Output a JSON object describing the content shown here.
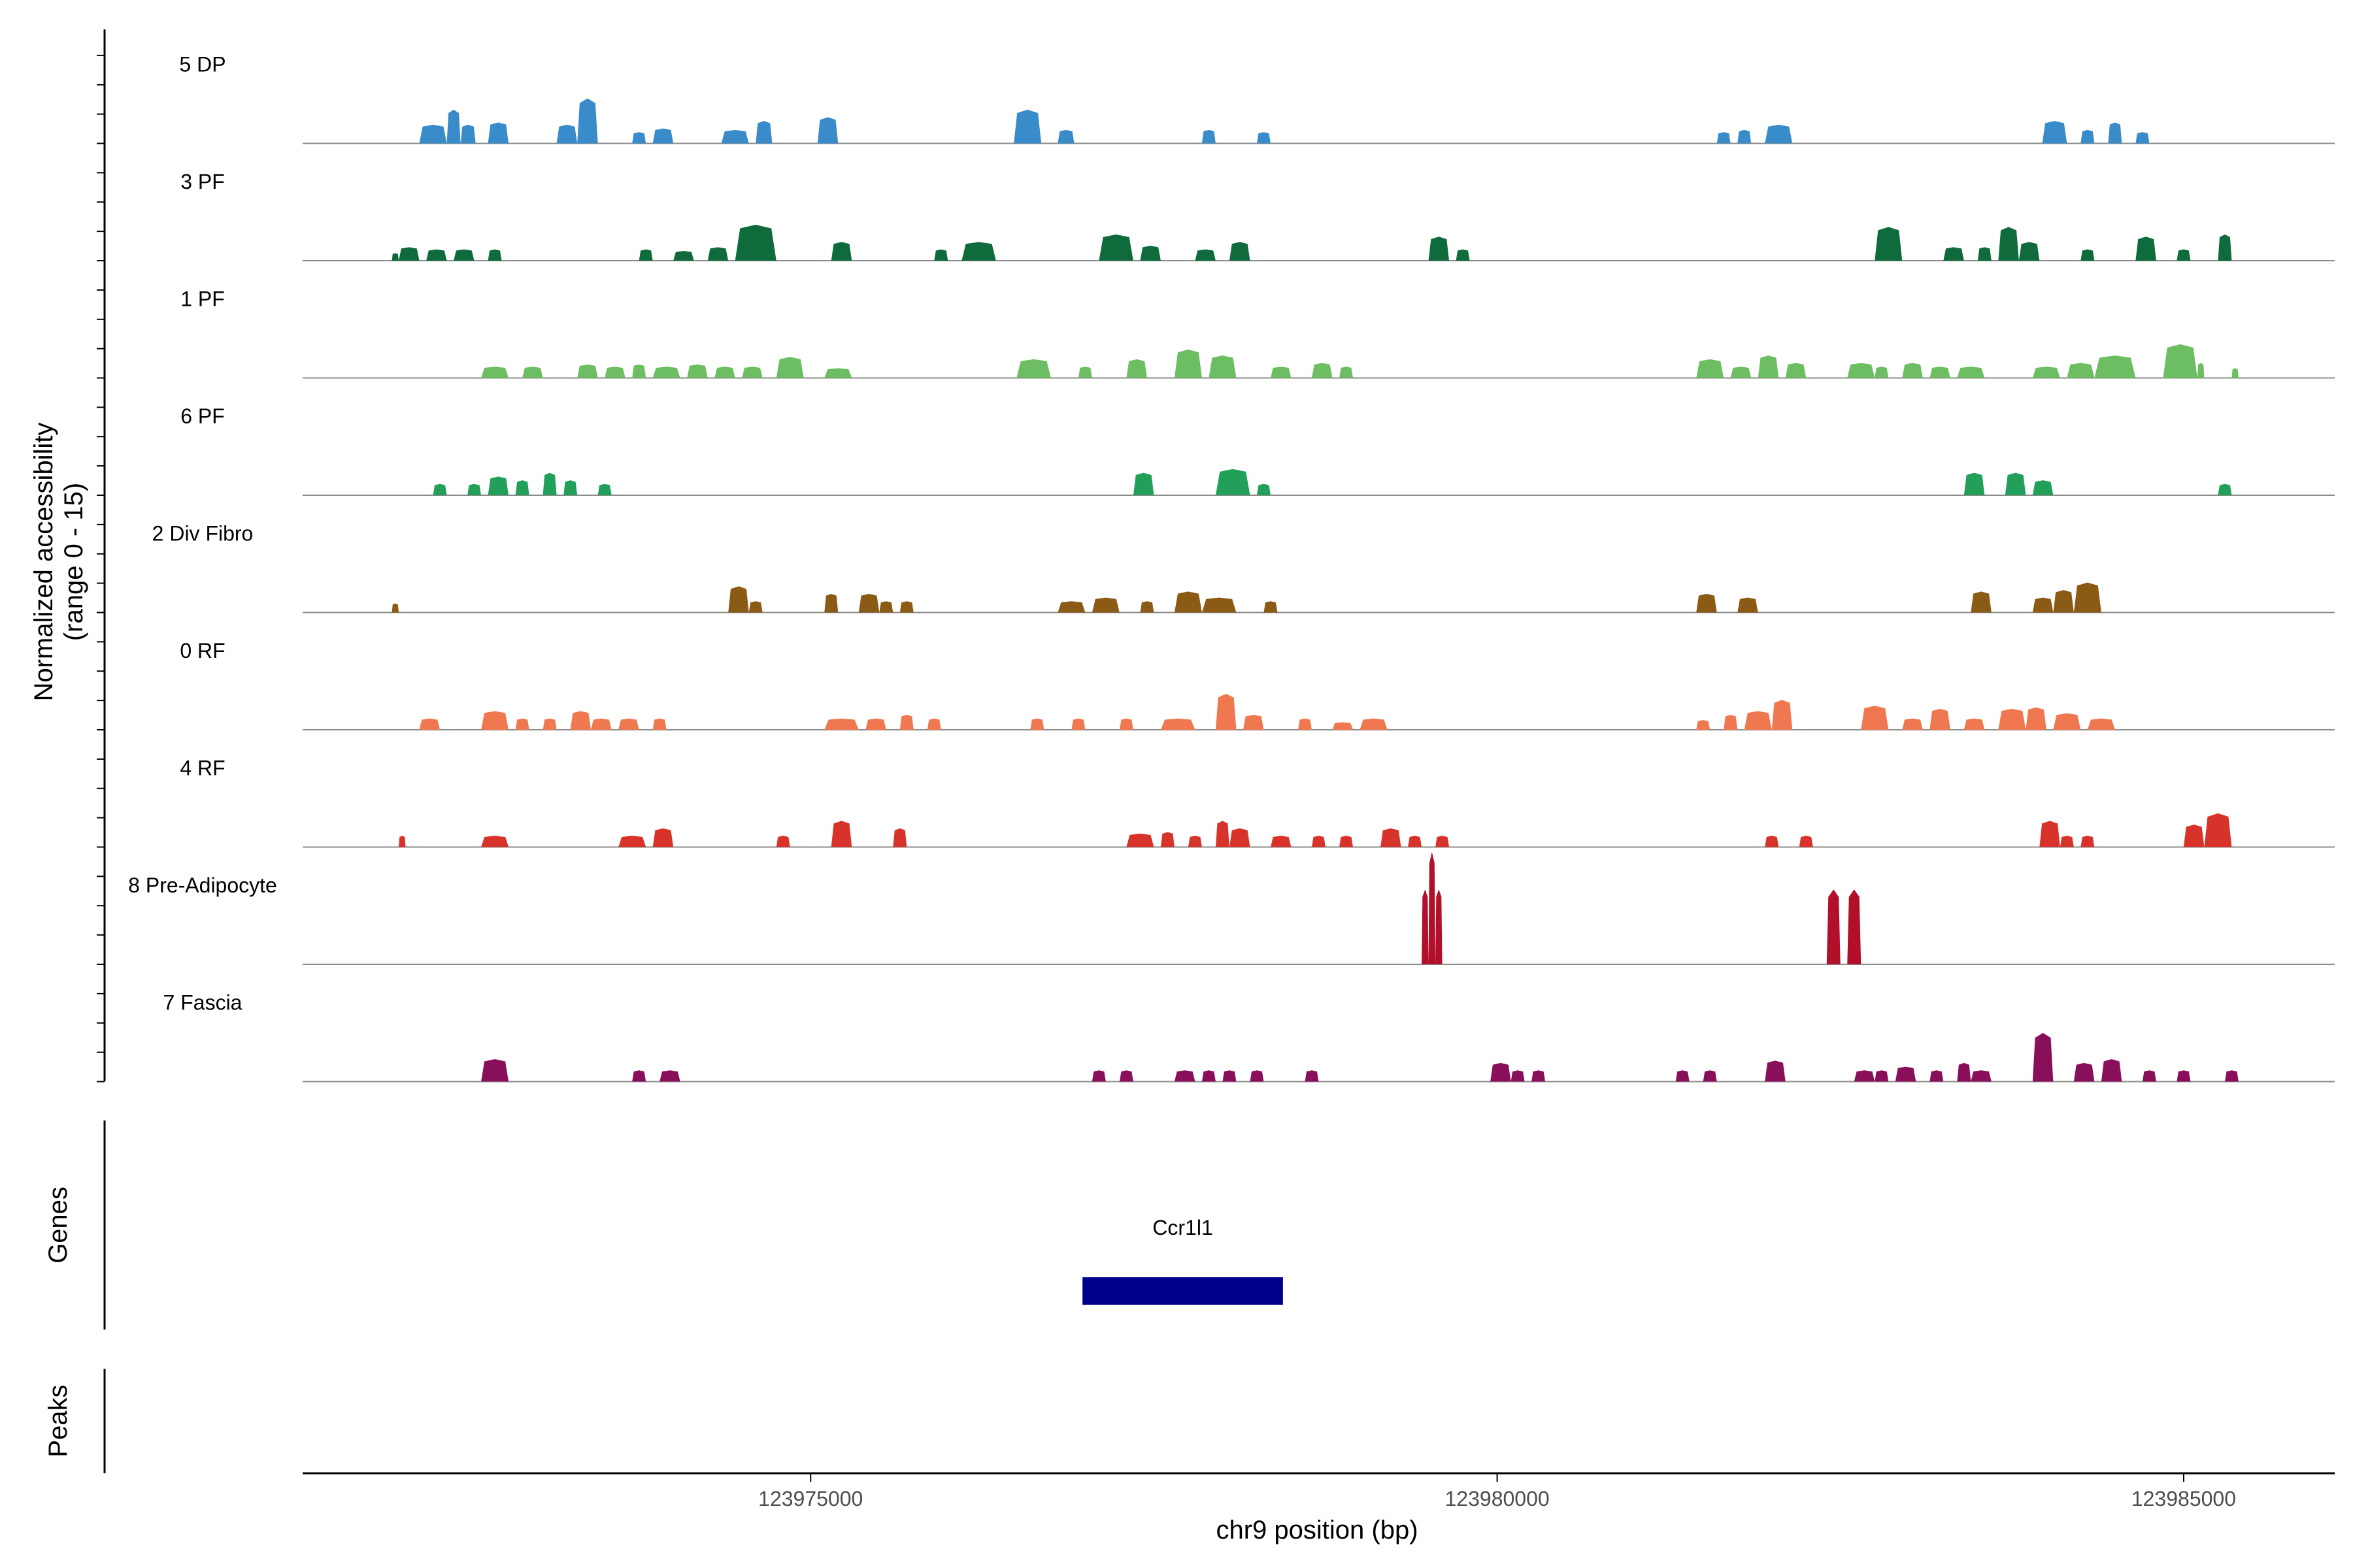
{
  "chart_data": {
    "type": "area",
    "x_axis": {
      "label": "chr9 position (bp)",
      "range": [
        123971300,
        123986100
      ],
      "ticks": [
        123975000,
        123980000,
        123985000
      ],
      "tick_labels": [
        "123975000",
        "123980000",
        "123985000"
      ]
    },
    "y_axis": {
      "label_line1": "Normalized accessibility",
      "label_line2": "(range 0 - 15)",
      "range": [
        0,
        15
      ]
    },
    "panel_labels": {
      "genes": "Genes",
      "peaks": "Peaks"
    },
    "genes": [
      {
        "name": "Ccr1l1",
        "start": 123976980,
        "end": 123978440,
        "color": "#00008b"
      }
    ],
    "tracks": [
      {
        "name": "5 DP",
        "color": "#3a8bc9",
        "peaks": [
          [
            123972150,
            123972350,
            2.5
          ],
          [
            123972350,
            123972450,
            4.5
          ],
          [
            123972450,
            123972560,
            2.5
          ],
          [
            123972650,
            123972800,
            2.8
          ],
          [
            123973150,
            123973300,
            2.5
          ],
          [
            123973300,
            123973450,
            6.0
          ],
          [
            123973700,
            123973800,
            1.5
          ],
          [
            123973850,
            123974000,
            2.0
          ],
          [
            123974350,
            123974550,
            1.8
          ],
          [
            123974600,
            123974720,
            3.0
          ],
          [
            123975050,
            123975200,
            3.5
          ],
          [
            123976480,
            123976680,
            4.5
          ],
          [
            123976800,
            123976920,
            1.8
          ],
          [
            123977850,
            123977950,
            1.8
          ],
          [
            123978250,
            123978350,
            1.5
          ],
          [
            123981600,
            123981700,
            1.5
          ],
          [
            123981750,
            123981850,
            1.8
          ],
          [
            123981950,
            123982150,
            2.5
          ],
          [
            123983970,
            123984150,
            3.0
          ],
          [
            123984250,
            123984350,
            1.8
          ],
          [
            123984450,
            123984550,
            2.8
          ],
          [
            123984650,
            123984750,
            1.5
          ]
        ]
      },
      {
        "name": "3 PF",
        "color": "#0f6b3c",
        "peaks": [
          [
            123971950,
            123972000,
            1.0
          ],
          [
            123972000,
            123972150,
            1.8
          ],
          [
            123972200,
            123972350,
            1.5
          ],
          [
            123972400,
            123972550,
            1.5
          ],
          [
            123972650,
            123972750,
            1.5
          ],
          [
            123973750,
            123973850,
            1.5
          ],
          [
            123974000,
            123974150,
            1.3
          ],
          [
            123974250,
            123974400,
            1.8
          ],
          [
            123974450,
            123974750,
            4.8
          ],
          [
            123975150,
            123975300,
            2.5
          ],
          [
            123975900,
            123976000,
            1.5
          ],
          [
            123976100,
            123976350,
            2.5
          ],
          [
            123977100,
            123977350,
            3.5
          ],
          [
            123977400,
            123977550,
            2.0
          ],
          [
            123977800,
            123977950,
            1.5
          ],
          [
            123978050,
            123978200,
            2.5
          ],
          [
            123979500,
            123979650,
            3.2
          ],
          [
            123979700,
            123979800,
            1.5
          ],
          [
            123982750,
            123982950,
            4.5
          ],
          [
            123983250,
            123983400,
            1.8
          ],
          [
            123983500,
            123983600,
            1.8
          ],
          [
            123983650,
            123983800,
            4.5
          ],
          [
            123983800,
            123983950,
            2.5
          ],
          [
            123984250,
            123984350,
            1.5
          ],
          [
            123984650,
            123984800,
            3.2
          ],
          [
            123984950,
            123985050,
            1.5
          ],
          [
            123985250,
            123985350,
            3.5
          ]
        ]
      },
      {
        "name": "1 PF",
        "color": "#6dbe62",
        "peaks": [
          [
            123972600,
            123972800,
            1.5
          ],
          [
            123972900,
            123973050,
            1.5
          ],
          [
            123973300,
            123973450,
            1.8
          ],
          [
            123973500,
            123973650,
            1.5
          ],
          [
            123973700,
            123973800,
            1.8
          ],
          [
            123973850,
            123974050,
            1.5
          ],
          [
            123974100,
            123974250,
            1.8
          ],
          [
            123974300,
            123974450,
            1.5
          ],
          [
            123974500,
            123974650,
            1.5
          ],
          [
            123974750,
            123974950,
            2.8
          ],
          [
            123975100,
            123975300,
            1.3
          ],
          [
            123976500,
            123976750,
            2.5
          ],
          [
            123976950,
            123977050,
            1.5
          ],
          [
            123977300,
            123977450,
            2.5
          ],
          [
            123977650,
            123977850,
            3.8
          ],
          [
            123977900,
            123978100,
            3.0
          ],
          [
            123978350,
            123978500,
            1.5
          ],
          [
            123978650,
            123978800,
            2.0
          ],
          [
            123978850,
            123978950,
            1.5
          ],
          [
            123981450,
            123981650,
            2.5
          ],
          [
            123981700,
            123981850,
            1.5
          ],
          [
            123981900,
            123982050,
            3.0
          ],
          [
            123982100,
            123982250,
            2.0
          ],
          [
            123982550,
            123982750,
            2.0
          ],
          [
            123982750,
            123982850,
            1.5
          ],
          [
            123982950,
            123983100,
            2.0
          ],
          [
            123983150,
            123983300,
            1.5
          ],
          [
            123983350,
            123983550,
            1.5
          ],
          [
            123983900,
            123984100,
            1.5
          ],
          [
            123984150,
            123984350,
            2.0
          ],
          [
            123984350,
            123984650,
            3.0
          ],
          [
            123984850,
            123985100,
            4.5
          ],
          [
            123985100,
            123985150,
            2.0
          ],
          [
            123985350,
            123985400,
            1.3
          ]
        ]
      },
      {
        "name": "6 PF",
        "color": "#22a05a",
        "peaks": [
          [
            123972250,
            123972350,
            1.5
          ],
          [
            123972500,
            123972600,
            1.5
          ],
          [
            123972650,
            123972800,
            2.5
          ],
          [
            123972850,
            123972950,
            2.0
          ],
          [
            123973050,
            123973150,
            3.0
          ],
          [
            123973200,
            123973300,
            2.0
          ],
          [
            123973450,
            123973550,
            1.5
          ],
          [
            123977350,
            123977500,
            3.0
          ],
          [
            123977950,
            123978200,
            3.5
          ],
          [
            123978250,
            123978350,
            1.5
          ],
          [
            123983400,
            123983550,
            3.0
          ],
          [
            123983700,
            123983850,
            3.0
          ],
          [
            123983900,
            123984050,
            2.0
          ],
          [
            123985250,
            123985350,
            1.5
          ]
        ]
      },
      {
        "name": "2 Div Fibro",
        "color": "#8b5a14",
        "peaks": [
          [
            123971950,
            123972000,
            1.2
          ],
          [
            123974400,
            123974550,
            3.5
          ],
          [
            123974550,
            123974650,
            1.5
          ],
          [
            123975100,
            123975200,
            2.5
          ],
          [
            123975350,
            123975500,
            2.5
          ],
          [
            123975500,
            123975600,
            1.5
          ],
          [
            123975650,
            123975750,
            1.5
          ],
          [
            123976800,
            123977000,
            1.5
          ],
          [
            123977050,
            123977250,
            2.0
          ],
          [
            123977400,
            123977500,
            1.5
          ],
          [
            123977650,
            123977850,
            2.8
          ],
          [
            123977850,
            123978100,
            2.0
          ],
          [
            123978300,
            123978400,
            1.5
          ],
          [
            123981450,
            123981600,
            2.5
          ],
          [
            123981750,
            123981900,
            2.0
          ],
          [
            123983450,
            123983600,
            2.8
          ],
          [
            123983900,
            123984050,
            2.0
          ],
          [
            123984050,
            123984200,
            3.0
          ],
          [
            123984200,
            123984400,
            4.0
          ]
        ]
      },
      {
        "name": "0 RF",
        "color": "#f07850",
        "peaks": [
          [
            123972150,
            123972300,
            1.5
          ],
          [
            123972600,
            123972800,
            2.5
          ],
          [
            123972850,
            123972950,
            1.5
          ],
          [
            123973050,
            123973150,
            1.5
          ],
          [
            123973250,
            123973400,
            2.5
          ],
          [
            123973400,
            123973550,
            1.5
          ],
          [
            123973600,
            123973750,
            1.5
          ],
          [
            123973850,
            123973950,
            1.5
          ],
          [
            123975100,
            123975350,
            1.5
          ],
          [
            123975400,
            123975550,
            1.5
          ],
          [
            123975650,
            123975750,
            2.0
          ],
          [
            123975850,
            123975950,
            1.5
          ],
          [
            123976600,
            123976700,
            1.5
          ],
          [
            123976900,
            123977000,
            1.5
          ],
          [
            123977250,
            123977350,
            1.5
          ],
          [
            123977550,
            123977800,
            1.5
          ],
          [
            123977950,
            123978100,
            4.8
          ],
          [
            123978150,
            123978300,
            2.0
          ],
          [
            123978550,
            123978650,
            1.5
          ],
          [
            123978800,
            123978950,
            1.0
          ],
          [
            123979000,
            123979200,
            1.5
          ],
          [
            123981450,
            123981550,
            1.3
          ],
          [
            123981650,
            123981750,
            2.0
          ],
          [
            123981800,
            123982000,
            2.5
          ],
          [
            123982000,
            123982150,
            4.0
          ],
          [
            123982650,
            123982850,
            3.2
          ],
          [
            123982950,
            123983100,
            1.5
          ],
          [
            123983150,
            123983300,
            2.8
          ],
          [
            123983400,
            123983550,
            1.5
          ],
          [
            123983650,
            123983850,
            2.8
          ],
          [
            123983850,
            123984000,
            3.0
          ],
          [
            123984050,
            123984250,
            2.2
          ],
          [
            123984300,
            123984500,
            1.5
          ]
        ]
      },
      {
        "name": "4 RF",
        "color": "#d7332a",
        "peaks": [
          [
            123972000,
            123972050,
            1.5
          ],
          [
            123972600,
            123972800,
            1.5
          ],
          [
            123973600,
            123973800,
            1.5
          ],
          [
            123973850,
            123974000,
            2.5
          ],
          [
            123974750,
            123974850,
            1.5
          ],
          [
            123975150,
            123975300,
            3.5
          ],
          [
            123975600,
            123975700,
            2.5
          ],
          [
            123977300,
            123977500,
            1.8
          ],
          [
            123977550,
            123977650,
            2.0
          ],
          [
            123977750,
            123977850,
            1.5
          ],
          [
            123977950,
            123978050,
            3.5
          ],
          [
            123978050,
            123978200,
            2.5
          ],
          [
            123978350,
            123978500,
            1.5
          ],
          [
            123978650,
            123978750,
            1.5
          ],
          [
            123978850,
            123978950,
            1.5
          ],
          [
            123979150,
            123979300,
            2.5
          ],
          [
            123979350,
            123979450,
            1.5
          ],
          [
            123979550,
            123979650,
            1.5
          ],
          [
            123981950,
            123982050,
            1.5
          ],
          [
            123982200,
            123982300,
            1.5
          ],
          [
            123983950,
            123984100,
            3.5
          ],
          [
            123984100,
            123984200,
            1.5
          ],
          [
            123984250,
            123984350,
            1.5
          ],
          [
            123985000,
            123985150,
            3.0
          ],
          [
            123985150,
            123985350,
            4.5
          ]
        ]
      },
      {
        "name": "8 Pre-Adipocyte",
        "color": "#b2102a",
        "peaks": [
          [
            123979450,
            123979500,
            10.0
          ],
          [
            123979500,
            123979550,
            15.0
          ],
          [
            123979550,
            123979600,
            10.0
          ],
          [
            123982400,
            123982500,
            10.0
          ],
          [
            123982550,
            123982650,
            10.0
          ]
        ]
      },
      {
        "name": "7 Fascia",
        "color": "#8a0f5a",
        "peaks": [
          [
            123972600,
            123972800,
            3.0
          ],
          [
            123973700,
            123973800,
            1.5
          ],
          [
            123973900,
            123974050,
            1.5
          ],
          [
            123977050,
            123977150,
            1.5
          ],
          [
            123977250,
            123977350,
            1.5
          ],
          [
            123977650,
            123977800,
            1.5
          ],
          [
            123977850,
            123977950,
            1.5
          ],
          [
            123978000,
            123978100,
            1.5
          ],
          [
            123978200,
            123978300,
            1.5
          ],
          [
            123978600,
            123978700,
            1.5
          ],
          [
            123979950,
            123980100,
            2.5
          ],
          [
            123980100,
            123980200,
            1.5
          ],
          [
            123980250,
            123980350,
            1.5
          ],
          [
            123981300,
            123981400,
            1.5
          ],
          [
            123981500,
            123981600,
            1.5
          ],
          [
            123981950,
            123982100,
            2.8
          ],
          [
            123982600,
            123982750,
            1.5
          ],
          [
            123982750,
            123982850,
            1.5
          ],
          [
            123982900,
            123983050,
            2.0
          ],
          [
            123983150,
            123983250,
            1.5
          ],
          [
            123983350,
            123983450,
            2.5
          ],
          [
            123983450,
            123983600,
            1.5
          ],
          [
            123983900,
            123984050,
            6.5
          ],
          [
            123984200,
            123984350,
            2.5
          ],
          [
            123984400,
            123984550,
            3.0
          ],
          [
            123984700,
            123984800,
            1.5
          ],
          [
            123984950,
            123985050,
            1.5
          ],
          [
            123985300,
            123985400,
            1.5
          ]
        ]
      }
    ]
  }
}
